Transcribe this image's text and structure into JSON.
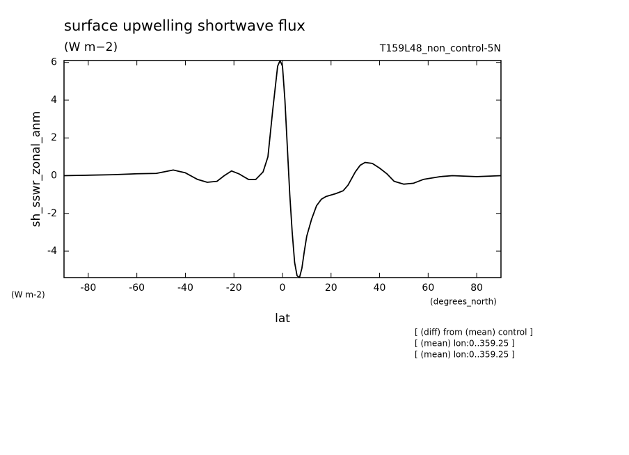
{
  "chart_data": {
    "type": "line",
    "title": "surface upwelling shortwave flux",
    "subtitle": "(W m−2)",
    "annotation": "T159L48_non_control-5N",
    "y_label": "sh_sswr_zonal_anm",
    "y_units": "(W m-2)",
    "x_units": "(degrees_north)",
    "x_label": "lat",
    "notes": [
      "[ (diff) from (mean) control ]",
      "[ (mean) lon:0..359.25 ]",
      "[ (mean) lon:0..359.25 ]"
    ],
    "x": [
      -90,
      -70,
      -60,
      -52,
      -45,
      -40,
      -35,
      -31,
      -27,
      -24,
      -21,
      -18,
      -14,
      -11,
      -8,
      -6,
      -4,
      -2,
      -1,
      0,
      1,
      2,
      3,
      4,
      5,
      6,
      7,
      8,
      9,
      10,
      12,
      14,
      16,
      18,
      22,
      25,
      27,
      30,
      32,
      34,
      37,
      40,
      43,
      46,
      50,
      54,
      58,
      65,
      70,
      80,
      90
    ],
    "series": [
      {
        "name": "sh_sswr_zonal_anm",
        "color": "#000000",
        "values": [
          0,
          0.05,
          0.1,
          0.12,
          0.3,
          0.15,
          -0.2,
          -0.35,
          -0.3,
          0,
          0.25,
          0.1,
          -0.2,
          -0.2,
          0.2,
          1.0,
          3.5,
          5.8,
          6.1,
          5.8,
          4,
          1.5,
          -1,
          -3,
          -4.6,
          -5.3,
          -5.4,
          -4.9,
          -4.0,
          -3.2,
          -2.3,
          -1.6,
          -1.25,
          -1.1,
          -0.95,
          -0.8,
          -0.5,
          0.2,
          0.55,
          0.7,
          0.65,
          0.4,
          0.1,
          -0.3,
          -0.45,
          -0.4,
          -0.2,
          -0.05,
          0,
          -0.05,
          0
        ]
      }
    ],
    "xlim": [
      -90,
      90
    ],
    "ylim": [
      -5.4,
      6.1
    ],
    "xticks": [
      -80,
      -60,
      -40,
      -20,
      0,
      20,
      40,
      60,
      80
    ],
    "yticks": [
      -4,
      -2,
      0,
      2,
      4,
      6
    ]
  }
}
